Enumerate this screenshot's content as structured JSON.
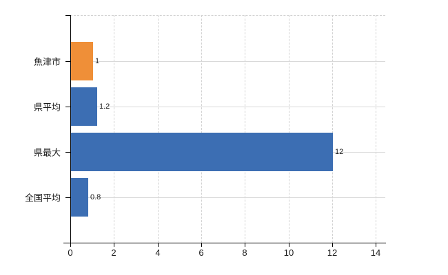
{
  "chart_data": {
    "type": "bar",
    "orientation": "horizontal",
    "title": "",
    "xlabel": "",
    "ylabel": "",
    "legend": "none",
    "categories": [
      "魚津市",
      "県平均",
      "県最大",
      "全国平均"
    ],
    "values": [
      1,
      1.2,
      12,
      0.8
    ],
    "value_labels": [
      "1",
      "1.2",
      "12",
      "0.8"
    ],
    "bar_colors": [
      "#EF8F38",
      "#3C6EB3",
      "#3C6EB3",
      "#3C6EB3"
    ],
    "x_ticks": [
      0,
      2,
      4,
      6,
      8,
      10,
      12,
      14
    ],
    "x_tick_labels": [
      "0",
      "2",
      "4",
      "6",
      "8",
      "10",
      "12",
      "14"
    ],
    "xlim": [
      0,
      14
    ],
    "grid": "vertical dashed gridlines at each x tick; solid light horizontal line at each category row; dashed top border"
  },
  "colors": {
    "bar_blue": "#3C6EB3",
    "bar_orange": "#EF8F38",
    "gridline_solid": "#D9D9D9",
    "gridline_dashed": "#D2D2D2",
    "axis": "#000000",
    "text": "#1A1A1A",
    "background": "#FFFFFF"
  }
}
